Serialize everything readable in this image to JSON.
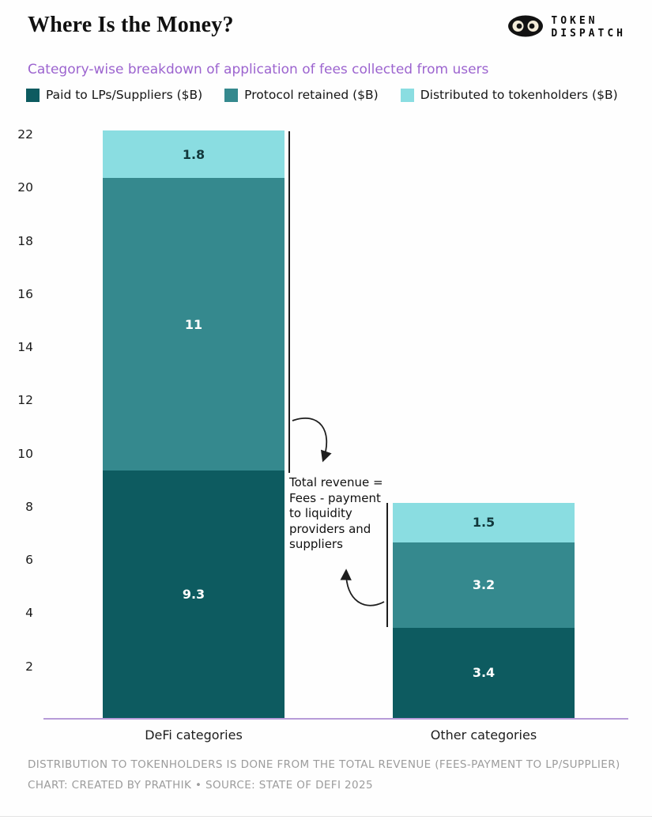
{
  "header": {
    "title": "Where Is the Money?",
    "subtitle": "Category-wise breakdown of application of fees collected from users",
    "logo": {
      "line1": "TOKEN",
      "line2": "DISPATCH"
    }
  },
  "chart_data": {
    "type": "bar",
    "stacked": true,
    "title": "Where Is the Money?",
    "subtitle": "Category-wise breakdown of application of fees collected from users",
    "categories": [
      "DeFi categories",
      "Other categories"
    ],
    "series": [
      {
        "name": "Paid to LPs/Suppliers ($B)",
        "color": "#0d5b60",
        "label_color": "#ffffff",
        "values": [
          9.3,
          3.4
        ]
      },
      {
        "name": "Protocol retained ($B)",
        "color": "#35898e",
        "label_color": "#ffffff",
        "values": [
          11,
          3.2
        ]
      },
      {
        "name": "Distributed to tokenholders ($B)",
        "color": "#8adde1",
        "label_color": "#12383c",
        "values": [
          1.8,
          1.5
        ]
      }
    ],
    "totals": [
      22.1,
      8.1
    ],
    "ylim": [
      0,
      22.3
    ],
    "yticks": [
      2,
      4,
      6,
      8,
      10,
      12,
      14,
      16,
      18,
      20,
      22
    ],
    "grid": false,
    "legend_position": "top",
    "annotation": "Total revenue =\nFees - payment\nto liquidity\nproviders and\nsuppliers"
  },
  "footer": {
    "note1": "DISTRIBUTION TO TOKENHOLDERS IS DONE FROM THE TOTAL REVENUE (FEES-PAYMENT TO LP/SUPPLIER)",
    "note2": "CHART: CREATED BY PRATHIK • SOURCE: STATE OF DEFI 2025"
  },
  "colors": {
    "subtitle": "#9c64cf",
    "axis_line": "#b79bd8",
    "annotation_stroke": "#1e1e1e"
  }
}
